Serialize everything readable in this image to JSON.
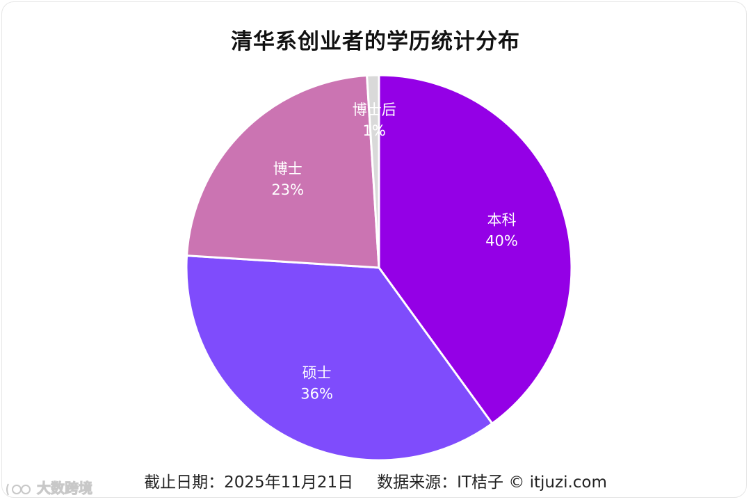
{
  "chart_data": {
    "type": "pie",
    "title": "清华系创业者的学历统计分布",
    "slices": [
      {
        "label": "本科",
        "value": 40,
        "value_label": "40%",
        "color": "#9400e6"
      },
      {
        "label": "硕士",
        "value": 36,
        "value_label": "36%",
        "color": "#7f4cfc"
      },
      {
        "label": "博士",
        "value": 23,
        "value_label": "23%",
        "color": "#cb74b2"
      },
      {
        "label": "博士后",
        "value": 1,
        "value_label": "1%",
        "color": "#d9d9d9"
      }
    ]
  },
  "footer": {
    "date_text": "截止日期：2025年11月21日",
    "source_text": "数据来源：IT桔子 © itjuzi.com"
  },
  "watermark": {
    "text": "大数跨境"
  }
}
